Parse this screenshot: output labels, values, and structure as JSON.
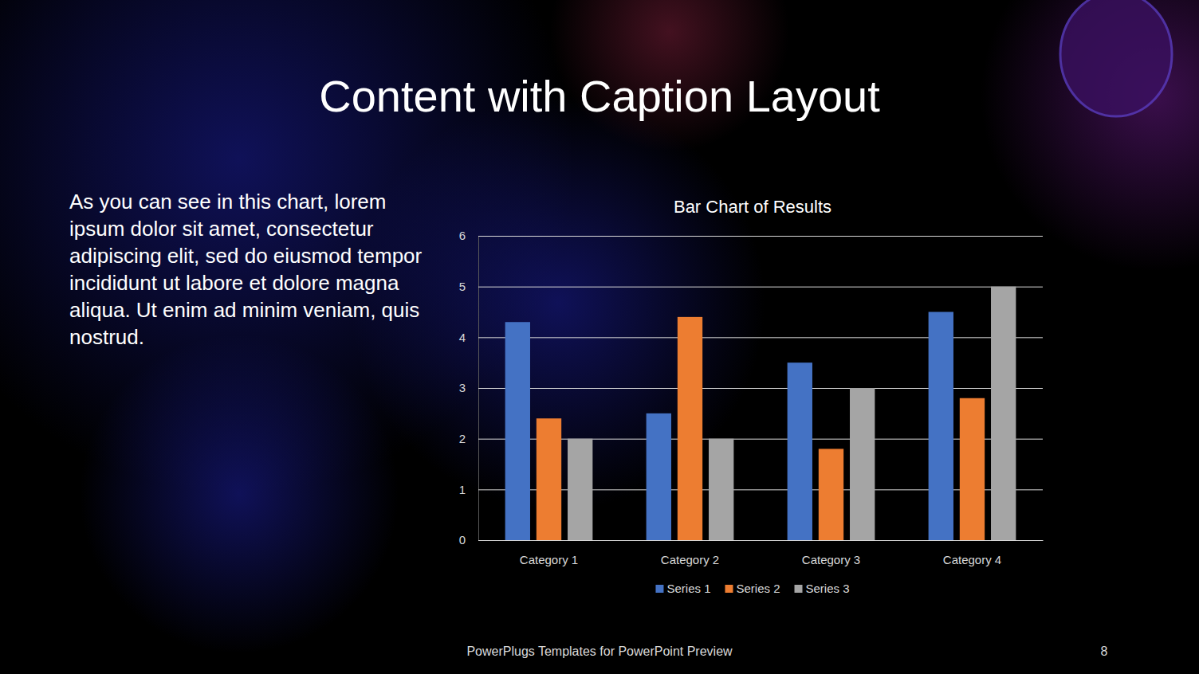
{
  "slide": {
    "title": "Content with Caption Layout",
    "caption": "As you can see in this chart, lorem ipsum dolor sit amet, consectetur adipiscing elit, sed do eiusmod tempor incididunt ut labore et dolore magna aliqua. Ut enim ad minim veniam, quis nostrud.",
    "footer": "PowerPlugs Templates for PowerPoint Preview",
    "page_number": 8
  },
  "chart_data": {
    "type": "bar",
    "title": "Bar Chart of Results",
    "categories": [
      "Category 1",
      "Category 2",
      "Category 3",
      "Category 4"
    ],
    "series": [
      {
        "name": "Series 1",
        "color": "#4472c4",
        "values": [
          4.3,
          2.5,
          3.5,
          4.5
        ]
      },
      {
        "name": "Series 2",
        "color": "#ed7d31",
        "values": [
          2.4,
          4.4,
          1.8,
          2.8
        ]
      },
      {
        "name": "Series 3",
        "color": "#a5a5a5",
        "values": [
          2,
          2,
          3,
          5
        ]
      }
    ],
    "ylim": [
      0,
      6
    ],
    "yticks": [
      0,
      1,
      2,
      3,
      4,
      5,
      6
    ],
    "grid": true,
    "legend": "bottom"
  }
}
